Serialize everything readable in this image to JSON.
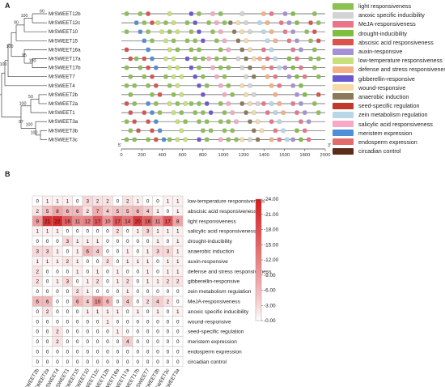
{
  "panel_a": {
    "letter": "A",
    "genes": [
      "MrSWEET12b",
      "MrSWEET12c",
      "MrSWEET10",
      "MrSWEET15",
      "MrSWEET16a",
      "MrSWEET17a",
      "MrSWEET17b",
      "MrSWEET7",
      "MrSWEET4",
      "MrSWEET2b",
      "MrSWEET2a",
      "MrSWEET1",
      "MrSWEET3a",
      "MrSWEET3b",
      "MrSWEET3c"
    ],
    "bootstrap": [
      "60",
      "100",
      "90",
      "95",
      "100",
      "100",
      "100",
      "50",
      "100",
      "97",
      "100",
      "100"
    ],
    "scale_ticks": [
      "0",
      "200",
      "400",
      "600",
      "800",
      "1000",
      "1200",
      "1400",
      "1600",
      "1800",
      "2000"
    ],
    "end5": "5'",
    "end3": "3'",
    "legend": [
      {
        "label": "light responsiveness",
        "color": "#8cc152"
      },
      {
        "label": "anoxic specific inducibility",
        "color": "#d3d3d3"
      },
      {
        "label": "MeJA-responsiveness",
        "color": "#e8758a"
      },
      {
        "label": "drought-inducibility",
        "color": "#7fbf3f"
      },
      {
        "label": "abscisic acid responsiveness",
        "color": "#d9534f"
      },
      {
        "label": "auxin-responsive",
        "color": "#a592d6"
      },
      {
        "label": "low-temperature responsiveness",
        "color": "#c7e07a"
      },
      {
        "label": "defense and stress responsiveness",
        "color": "#f4b183"
      },
      {
        "label": "gibberellin-responsive",
        "color": "#6a5acd"
      },
      {
        "label": "wound-responsive",
        "color": "#f6d9a8"
      },
      {
        "label": "anaerobic induction",
        "color": "#8a7a5a"
      },
      {
        "label": "seed-specific regulation",
        "color": "#c0392b"
      },
      {
        "label": "zein metabolism regulation",
        "color": "#b7d7e8"
      },
      {
        "label": "salicylic acid responsiveness",
        "color": "#f7a8c4"
      },
      {
        "label": "meristem expression",
        "color": "#4f8fd8"
      },
      {
        "label": "endosperm expression",
        "color": "#e46b6b"
      },
      {
        "label": "circadian control",
        "color": "#5b2c1a"
      }
    ]
  },
  "panel_b": {
    "letter": "B",
    "chart_data": {
      "type": "heatmap",
      "columns": [
        "MrSWEET2b",
        "MrSWEET2a",
        "MrSWEET4",
        "MrSWEET1",
        "MrSWEET15",
        "MrSWEET10",
        "MrSWEET12c",
        "MrSWEET12b",
        "MrSWEET16a",
        "MrSWEET17a",
        "MrSWEET17b",
        "MrSWEET7",
        "MrSWEET3b",
        "MrSWEET3c",
        "MrSWEET3a"
      ],
      "rows": [
        "low-temperature responsiveness",
        "abscisic acid responsiveness",
        "light responsiveness",
        "salicylic acid responsiveness",
        "drought-inducibility",
        "anaerobic induction",
        "auxin-responsive",
        "defense and stress responsiveness",
        "gibberellin-responsive",
        "zein metabolism regulation",
        "MeJA-responsiveness",
        "anoxic specific inducibility",
        "wound-responsive",
        "seed-specific regulation",
        "meristem expression",
        "endosperm expression",
        "circadian control"
      ],
      "values": [
        [
          0,
          1,
          1,
          1,
          0,
          3,
          2,
          2,
          0,
          2,
          1,
          0,
          0,
          1,
          1
        ],
        [
          2,
          5,
          8,
          6,
          6,
          2,
          7,
          4,
          5,
          5,
          6,
          4,
          1,
          0,
          1
        ],
        [
          9,
          21,
          22,
          16,
          11,
          12,
          17,
          10,
          17,
          14,
          20,
          16,
          11,
          17,
          8
        ],
        [
          1,
          1,
          1,
          0,
          0,
          0,
          0,
          0,
          2,
          0,
          1,
          3,
          1,
          1,
          1
        ],
        [
          0,
          0,
          0,
          3,
          1,
          1,
          1,
          0,
          0,
          0,
          0,
          0,
          1,
          0,
          1
        ],
        [
          3,
          3,
          1,
          0,
          1,
          6,
          4,
          0,
          0,
          1,
          0,
          1,
          3,
          3,
          1
        ],
        [
          1,
          1,
          1,
          2,
          1,
          0,
          0,
          2,
          0,
          1,
          1,
          1,
          0,
          1,
          1
        ],
        [
          2,
          0,
          0,
          0,
          1,
          0,
          1,
          0,
          1,
          0,
          0,
          1,
          0,
          1,
          1
        ],
        [
          2,
          0,
          1,
          3,
          0,
          1,
          2,
          0,
          1,
          2,
          0,
          1,
          1,
          2,
          2
        ],
        [
          0,
          0,
          0,
          0,
          2,
          1,
          0,
          0,
          0,
          1,
          0,
          0,
          0,
          0,
          0
        ],
        [
          6,
          6,
          0,
          0,
          6,
          4,
          10,
          6,
          0,
          4,
          0,
          2,
          4,
          2,
          0
        ],
        [
          0,
          2,
          0,
          0,
          0,
          1,
          1,
          1,
          1,
          0,
          1,
          0,
          1,
          0,
          1
        ],
        [
          0,
          0,
          0,
          0,
          0,
          0,
          0,
          1,
          0,
          0,
          0,
          0,
          0,
          0,
          0
        ],
        [
          0,
          0,
          2,
          0,
          0,
          0,
          0,
          0,
          1,
          0,
          0,
          0,
          0,
          0,
          0
        ],
        [
          0,
          0,
          2,
          0,
          0,
          0,
          0,
          0,
          0,
          4,
          0,
          0,
          0,
          0,
          0
        ],
        [
          0,
          0,
          0,
          0,
          0,
          0,
          0,
          0,
          0,
          0,
          0,
          0,
          0,
          0,
          0
        ],
        [
          0,
          0,
          0,
          0,
          0,
          0,
          0,
          0,
          0,
          0,
          0,
          0,
          0,
          0,
          0
        ]
      ],
      "colorbar_ticks": [
        "24.00",
        "21.00",
        "18.00",
        "15.00",
        "12.00",
        "9.00",
        "6.00",
        "3.00",
        "0.00"
      ],
      "vmin": 0,
      "vmax": 24,
      "color_low": "#ffffff",
      "color_high": "#d7191c"
    }
  }
}
